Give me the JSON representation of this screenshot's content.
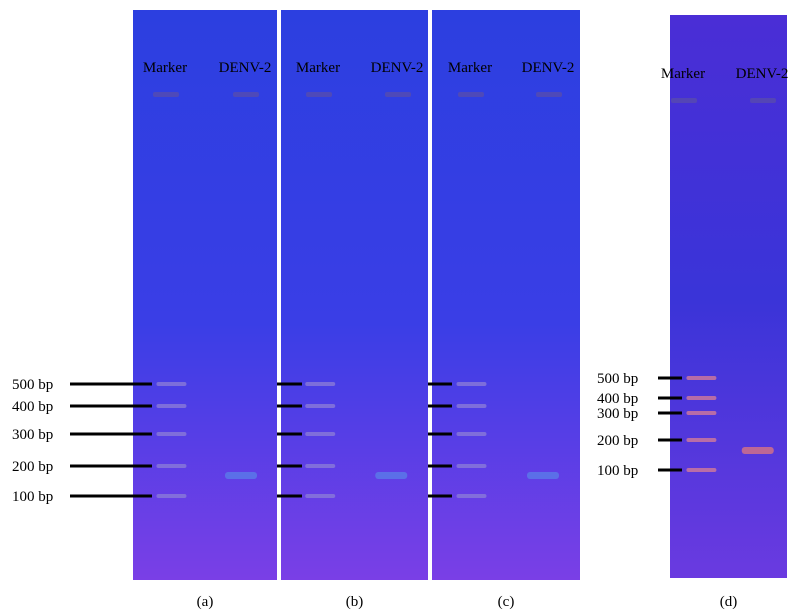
{
  "panels": [
    {
      "label": "(a)",
      "lanes": [
        "Marker",
        "DENV-2"
      ],
      "ladder": [
        "500 bp",
        "400 bp",
        "300 bp",
        "200 bp",
        "100 bp"
      ]
    },
    {
      "label": "(b)",
      "lanes": [
        "Marker",
        "DENV-2"
      ]
    },
    {
      "label": "(c)",
      "lanes": [
        "Marker",
        "DENV-2"
      ]
    },
    {
      "label": "(d)",
      "lanes": [
        "Marker",
        "DENV-2"
      ],
      "ladder": [
        "500 bp",
        "400 bp",
        "300 bp",
        "200 bp",
        "100 bp"
      ]
    }
  ]
}
